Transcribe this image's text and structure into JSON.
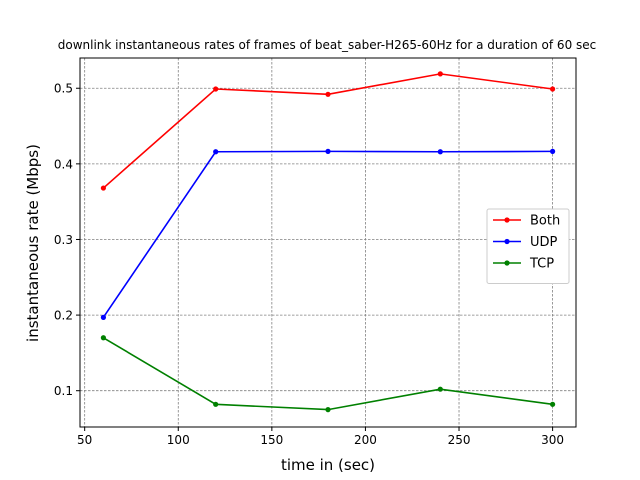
{
  "chart_data": {
    "type": "line",
    "title": "downlink instantaneous rates of frames of beat_saber-H265-60Hz for a duration of 60 sec",
    "xlabel": "time in (sec)",
    "ylabel": "instantaneous rate (Mbps)",
    "xlim": [
      47.5,
      312.5
    ],
    "ylim": [
      0.052,
      0.54
    ],
    "xticks": [
      50,
      100,
      150,
      200,
      250,
      300
    ],
    "yticks": [
      0.1,
      0.2,
      0.3,
      0.4,
      0.5
    ],
    "grid": true,
    "legend_position": "center-right",
    "x": [
      60,
      120,
      180,
      240,
      300
    ],
    "series": [
      {
        "name": "Both",
        "color": "#ff0000",
        "values": [
          0.368,
          0.499,
          0.492,
          0.519,
          0.499
        ]
      },
      {
        "name": "UDP",
        "color": "#0000ff",
        "values": [
          0.197,
          0.416,
          0.4165,
          0.416,
          0.4165
        ]
      },
      {
        "name": "TCP",
        "color": "#008000",
        "values": [
          0.17,
          0.082,
          0.075,
          0.102,
          0.082
        ]
      }
    ]
  }
}
